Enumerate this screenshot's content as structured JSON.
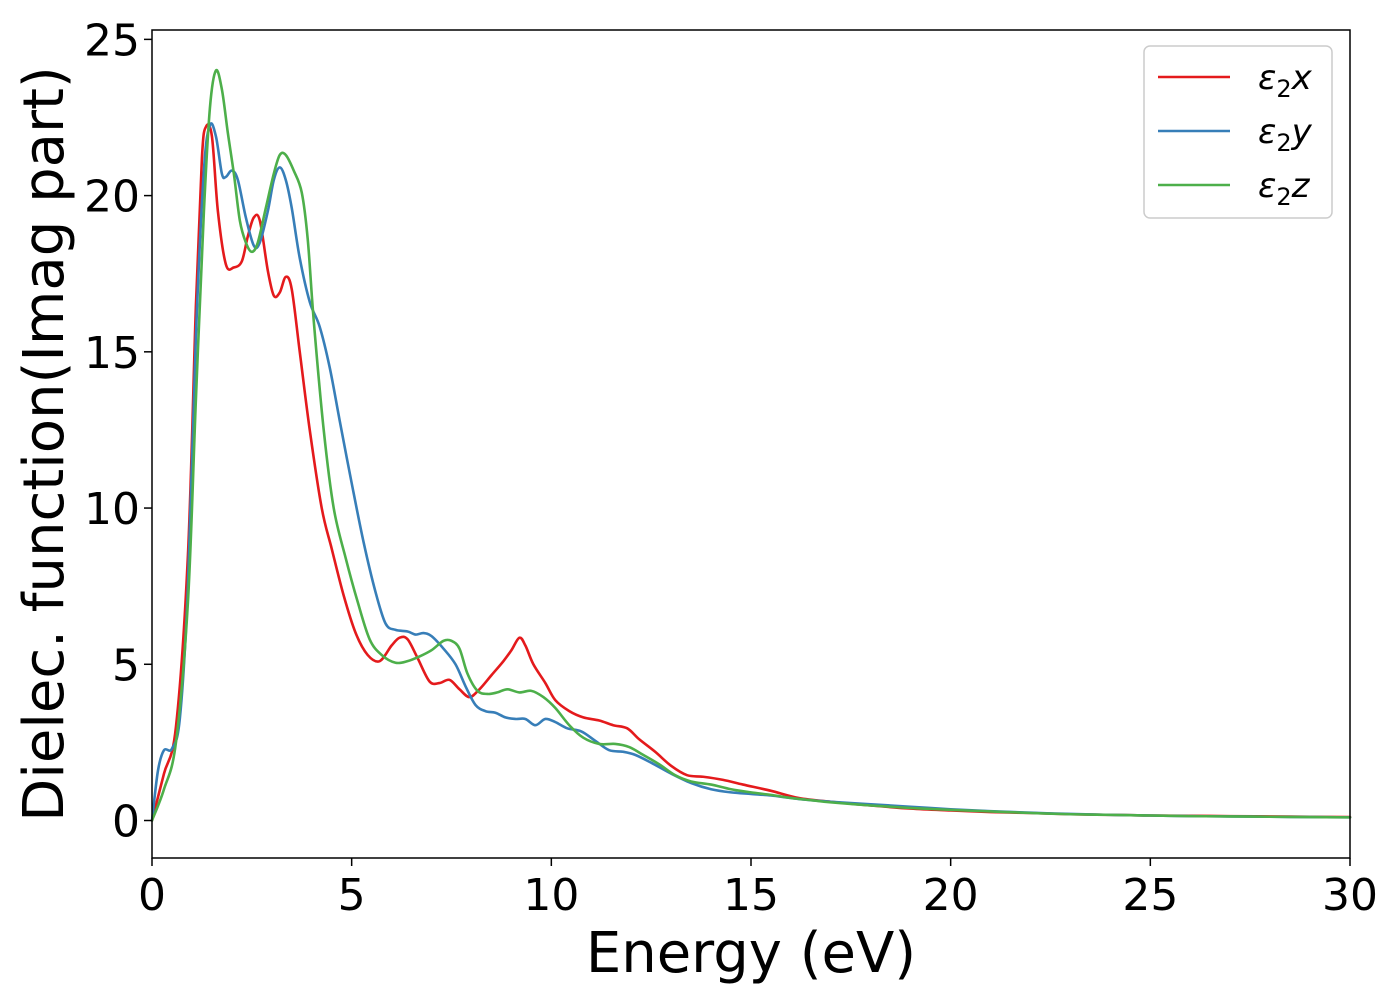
{
  "chart_data": {
    "type": "line",
    "title": "",
    "xlabel": "Energy (eV)",
    "ylabel": "Dielec. function(Imag part)",
    "xlim": [
      0,
      30
    ],
    "ylim": [
      -1.2,
      25.3
    ],
    "xticks": [
      "0",
      "5",
      "10",
      "15",
      "20",
      "25",
      "30"
    ],
    "xtick_values": [
      0,
      5,
      10,
      15,
      20,
      25,
      30
    ],
    "yticks": [
      "0",
      "5",
      "10",
      "15",
      "20",
      "25"
    ],
    "ytick_values": [
      0,
      5,
      10,
      15,
      20,
      25
    ],
    "grid": false,
    "legend": {
      "placement": "top-right"
    },
    "series": [
      {
        "name": "ε",
        "legend_sub": "2",
        "legend_suffix": "x",
        "color": "#e41a1c",
        "points": [
          [
            0,
            0
          ],
          [
            0.3,
            1.5
          ],
          [
            0.6,
            3.0
          ],
          [
            0.9,
            8.5
          ],
          [
            1.1,
            16.5
          ],
          [
            1.25,
            21.2
          ],
          [
            1.35,
            22.2
          ],
          [
            1.5,
            21.9
          ],
          [
            1.65,
            19.5
          ],
          [
            1.85,
            17.8
          ],
          [
            2.05,
            17.7
          ],
          [
            2.25,
            17.9
          ],
          [
            2.4,
            18.7
          ],
          [
            2.55,
            19.3
          ],
          [
            2.7,
            19.2
          ],
          [
            2.9,
            17.6
          ],
          [
            3.05,
            16.8
          ],
          [
            3.2,
            16.9
          ],
          [
            3.35,
            17.4
          ],
          [
            3.5,
            17.0
          ],
          [
            3.7,
            15.0
          ],
          [
            3.95,
            12.5
          ],
          [
            4.25,
            10.0
          ],
          [
            4.5,
            8.7
          ],
          [
            4.8,
            7.2
          ],
          [
            5.1,
            6.0
          ],
          [
            5.4,
            5.3
          ],
          [
            5.7,
            5.1
          ],
          [
            6.0,
            5.6
          ],
          [
            6.2,
            5.85
          ],
          [
            6.4,
            5.8
          ],
          [
            6.65,
            5.2
          ],
          [
            6.95,
            4.45
          ],
          [
            7.2,
            4.4
          ],
          [
            7.45,
            4.5
          ],
          [
            7.7,
            4.2
          ],
          [
            7.95,
            3.95
          ],
          [
            8.2,
            4.2
          ],
          [
            8.5,
            4.65
          ],
          [
            8.8,
            5.1
          ],
          [
            9.0,
            5.45
          ],
          [
            9.2,
            5.85
          ],
          [
            9.35,
            5.6
          ],
          [
            9.55,
            5.0
          ],
          [
            9.85,
            4.4
          ],
          [
            10.1,
            3.85
          ],
          [
            10.45,
            3.5
          ],
          [
            10.8,
            3.3
          ],
          [
            11.2,
            3.2
          ],
          [
            11.55,
            3.05
          ],
          [
            11.9,
            2.95
          ],
          [
            12.2,
            2.6
          ],
          [
            12.6,
            2.2
          ],
          [
            13.0,
            1.75
          ],
          [
            13.4,
            1.45
          ],
          [
            13.8,
            1.4
          ],
          [
            14.3,
            1.3
          ],
          [
            14.8,
            1.15
          ],
          [
            15.5,
            0.95
          ],
          [
            16.2,
            0.72
          ],
          [
            17.0,
            0.6
          ],
          [
            18.0,
            0.48
          ],
          [
            19.0,
            0.38
          ],
          [
            20.0,
            0.32
          ],
          [
            21.0,
            0.27
          ],
          [
            22.0,
            0.24
          ],
          [
            23.0,
            0.2
          ],
          [
            24.0,
            0.18
          ],
          [
            25.0,
            0.16
          ],
          [
            26.0,
            0.15
          ],
          [
            27.0,
            0.14
          ],
          [
            28.0,
            0.13
          ],
          [
            29.0,
            0.12
          ],
          [
            30.0,
            0.11
          ]
        ]
      },
      {
        "name": "ε",
        "legend_sub": "2",
        "legend_suffix": "y",
        "color": "#377eb8",
        "points": [
          [
            0,
            0
          ],
          [
            0.15,
            1.6
          ],
          [
            0.3,
            2.25
          ],
          [
            0.5,
            2.3
          ],
          [
            0.7,
            3.3
          ],
          [
            0.9,
            7.5
          ],
          [
            1.1,
            15.5
          ],
          [
            1.3,
            20.8
          ],
          [
            1.45,
            22.25
          ],
          [
            1.6,
            21.9
          ],
          [
            1.75,
            20.7
          ],
          [
            1.85,
            20.6
          ],
          [
            2.0,
            20.8
          ],
          [
            2.15,
            20.5
          ],
          [
            2.35,
            19.3
          ],
          [
            2.55,
            18.4
          ],
          [
            2.7,
            18.5
          ],
          [
            2.9,
            19.5
          ],
          [
            3.05,
            20.5
          ],
          [
            3.2,
            20.9
          ],
          [
            3.35,
            20.5
          ],
          [
            3.5,
            19.6
          ],
          [
            3.7,
            18.0
          ],
          [
            3.95,
            16.6
          ],
          [
            4.2,
            15.8
          ],
          [
            4.45,
            14.5
          ],
          [
            4.7,
            12.8
          ],
          [
            5.0,
            10.8
          ],
          [
            5.3,
            8.9
          ],
          [
            5.6,
            7.3
          ],
          [
            5.85,
            6.3
          ],
          [
            6.1,
            6.1
          ],
          [
            6.4,
            6.05
          ],
          [
            6.6,
            5.95
          ],
          [
            6.8,
            6.0
          ],
          [
            7.0,
            5.9
          ],
          [
            7.3,
            5.5
          ],
          [
            7.6,
            5.0
          ],
          [
            7.85,
            4.3
          ],
          [
            8.1,
            3.7
          ],
          [
            8.35,
            3.5
          ],
          [
            8.6,
            3.45
          ],
          [
            8.85,
            3.3
          ],
          [
            9.1,
            3.25
          ],
          [
            9.35,
            3.25
          ],
          [
            9.6,
            3.05
          ],
          [
            9.85,
            3.25
          ],
          [
            10.1,
            3.15
          ],
          [
            10.4,
            2.95
          ],
          [
            10.75,
            2.85
          ],
          [
            11.1,
            2.55
          ],
          [
            11.45,
            2.25
          ],
          [
            11.8,
            2.2
          ],
          [
            12.1,
            2.1
          ],
          [
            12.5,
            1.85
          ],
          [
            13.0,
            1.5
          ],
          [
            13.5,
            1.2
          ],
          [
            14.0,
            1.0
          ],
          [
            14.5,
            0.9
          ],
          [
            15.0,
            0.85
          ],
          [
            15.5,
            0.8
          ],
          [
            16.0,
            0.72
          ],
          [
            16.5,
            0.65
          ],
          [
            17.0,
            0.6
          ],
          [
            18.0,
            0.52
          ],
          [
            19.0,
            0.44
          ],
          [
            20.0,
            0.36
          ],
          [
            21.0,
            0.3
          ],
          [
            22.0,
            0.25
          ],
          [
            23.0,
            0.21
          ],
          [
            24.0,
            0.18
          ],
          [
            25.0,
            0.16
          ],
          [
            26.0,
            0.14
          ],
          [
            27.0,
            0.13
          ],
          [
            28.0,
            0.12
          ],
          [
            29.0,
            0.11
          ],
          [
            30.0,
            0.1
          ]
        ]
      },
      {
        "name": "ε",
        "legend_sub": "2",
        "legend_suffix": "z",
        "color": "#4daf4a",
        "points": [
          [
            0,
            0
          ],
          [
            0.3,
            1.0
          ],
          [
            0.6,
            2.5
          ],
          [
            0.9,
            7.0
          ],
          [
            1.1,
            13.5
          ],
          [
            1.3,
            19.5
          ],
          [
            1.45,
            22.8
          ],
          [
            1.6,
            24.0
          ],
          [
            1.75,
            23.4
          ],
          [
            1.9,
            22.0
          ],
          [
            2.05,
            20.7
          ],
          [
            2.2,
            19.2
          ],
          [
            2.35,
            18.5
          ],
          [
            2.5,
            18.2
          ],
          [
            2.65,
            18.5
          ],
          [
            2.85,
            19.6
          ],
          [
            3.05,
            20.7
          ],
          [
            3.2,
            21.3
          ],
          [
            3.35,
            21.3
          ],
          [
            3.55,
            20.8
          ],
          [
            3.75,
            20.1
          ],
          [
            3.9,
            18.6
          ],
          [
            4.05,
            16.0
          ],
          [
            4.3,
            12.5
          ],
          [
            4.55,
            10.0
          ],
          [
            4.85,
            8.4
          ],
          [
            5.15,
            7.0
          ],
          [
            5.45,
            5.8
          ],
          [
            5.75,
            5.3
          ],
          [
            6.1,
            5.05
          ],
          [
            6.4,
            5.1
          ],
          [
            6.7,
            5.25
          ],
          [
            7.0,
            5.45
          ],
          [
            7.3,
            5.75
          ],
          [
            7.5,
            5.75
          ],
          [
            7.7,
            5.5
          ],
          [
            7.9,
            4.7
          ],
          [
            8.15,
            4.15
          ],
          [
            8.4,
            4.05
          ],
          [
            8.65,
            4.1
          ],
          [
            8.9,
            4.2
          ],
          [
            9.2,
            4.1
          ],
          [
            9.5,
            4.15
          ],
          [
            9.8,
            3.95
          ],
          [
            10.1,
            3.6
          ],
          [
            10.45,
            3.05
          ],
          [
            10.8,
            2.65
          ],
          [
            11.2,
            2.45
          ],
          [
            11.6,
            2.45
          ],
          [
            11.95,
            2.35
          ],
          [
            12.3,
            2.1
          ],
          [
            12.7,
            1.8
          ],
          [
            13.1,
            1.45
          ],
          [
            13.5,
            1.25
          ],
          [
            14.0,
            1.15
          ],
          [
            14.5,
            1.0
          ],
          [
            15.0,
            0.9
          ],
          [
            15.5,
            0.82
          ],
          [
            16.0,
            0.72
          ],
          [
            16.5,
            0.65
          ],
          [
            17.0,
            0.58
          ],
          [
            18.0,
            0.48
          ],
          [
            19.0,
            0.4
          ],
          [
            20.0,
            0.34
          ],
          [
            21.0,
            0.29
          ],
          [
            22.0,
            0.24
          ],
          [
            23.0,
            0.2
          ],
          [
            24.0,
            0.18
          ],
          [
            25.0,
            0.16
          ],
          [
            26.0,
            0.14
          ],
          [
            27.0,
            0.13
          ],
          [
            28.0,
            0.12
          ],
          [
            29.0,
            0.11
          ],
          [
            30.0,
            0.1
          ]
        ]
      }
    ]
  }
}
